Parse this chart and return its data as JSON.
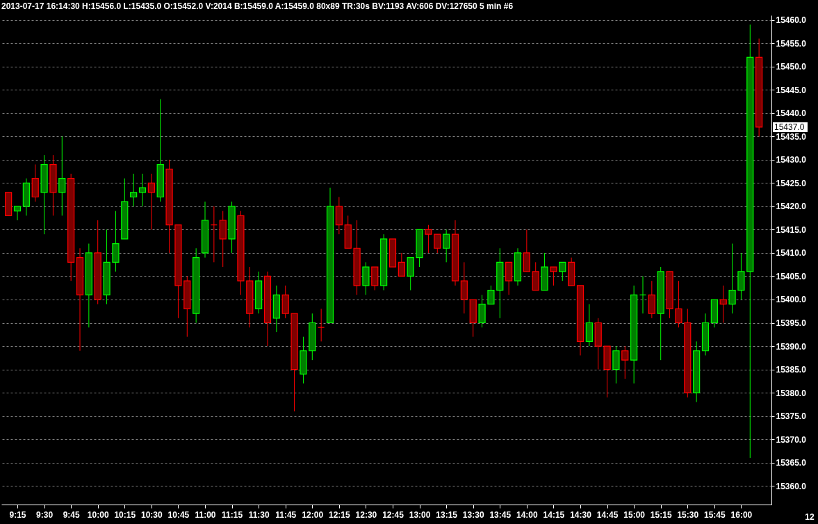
{
  "chart_data": {
    "type": "candlestick",
    "title": "2013-07-17 16:14:30 H:15456.0 L:15435.0 O:15452.0 V:2014 B:15459.0 A:15459.0 80x89 TR:30s BV:1193 AV:606 DV:127650 5 min  #6",
    "x": [
      "2013-07-17T09:10",
      "2013-07-17T09:15",
      "2013-07-17T09:20",
      "2013-07-17T09:25",
      "2013-07-17T09:30",
      "2013-07-17T09:35",
      "2013-07-17T09:40",
      "2013-07-17T09:45",
      "2013-07-17T09:50",
      "2013-07-17T09:55",
      "2013-07-17T10:00",
      "2013-07-17T10:05",
      "2013-07-17T10:10",
      "2013-07-17T10:15",
      "2013-07-17T10:20",
      "2013-07-17T10:25",
      "2013-07-17T10:30",
      "2013-07-17T10:35",
      "2013-07-17T10:40",
      "2013-07-17T10:45",
      "2013-07-17T10:50",
      "2013-07-17T10:55",
      "2013-07-17T11:00",
      "2013-07-17T11:05",
      "2013-07-17T11:10",
      "2013-07-17T11:15",
      "2013-07-17T11:20",
      "2013-07-17T11:25",
      "2013-07-17T11:30",
      "2013-07-17T11:35",
      "2013-07-17T11:40",
      "2013-07-17T11:45",
      "2013-07-17T11:50",
      "2013-07-17T11:55",
      "2013-07-17T12:00",
      "2013-07-17T12:05",
      "2013-07-17T12:10",
      "2013-07-17T12:15",
      "2013-07-17T12:20",
      "2013-07-17T12:25",
      "2013-07-17T12:30",
      "2013-07-17T12:35",
      "2013-07-17T12:40",
      "2013-07-17T12:45",
      "2013-07-17T12:50",
      "2013-07-17T12:55",
      "2013-07-17T13:00",
      "2013-07-17T13:05",
      "2013-07-17T13:10",
      "2013-07-17T13:15",
      "2013-07-17T13:20",
      "2013-07-17T13:25",
      "2013-07-17T13:30",
      "2013-07-17T13:35",
      "2013-07-17T13:40",
      "2013-07-17T13:45",
      "2013-07-17T13:50",
      "2013-07-17T13:55",
      "2013-07-17T14:00",
      "2013-07-17T14:05",
      "2013-07-17T14:10",
      "2013-07-17T14:15",
      "2013-07-17T14:20",
      "2013-07-17T14:25",
      "2013-07-17T14:30",
      "2013-07-17T14:35",
      "2013-07-17T14:40",
      "2013-07-17T14:45",
      "2013-07-17T14:50",
      "2013-07-17T14:55",
      "2013-07-17T15:00",
      "2013-07-17T15:05",
      "2013-07-17T15:10",
      "2013-07-17T15:15",
      "2013-07-17T15:20",
      "2013-07-17T15:25",
      "2013-07-17T15:30",
      "2013-07-17T15:35",
      "2013-07-17T15:40",
      "2013-07-17T15:45",
      "2013-07-17T15:50",
      "2013-07-17T15:55",
      "2013-07-17T16:00",
      "2013-07-17T16:05",
      "2013-07-17T16:10"
    ],
    "ohlc": [
      [
        15423,
        15423,
        15418,
        15418
      ],
      [
        15419,
        15420,
        15417,
        15420
      ],
      [
        15420,
        15426,
        15418,
        15425
      ],
      [
        15426,
        15429,
        15421,
        15422
      ],
      [
        15423,
        15431,
        15414,
        15429
      ],
      [
        15429,
        15431,
        15418,
        15423
      ],
      [
        15423,
        15435,
        15418,
        15426
      ],
      [
        15426,
        15427,
        15404,
        15408
      ],
      [
        15409,
        15411,
        15389,
        15401
      ],
      [
        15401,
        15412,
        15394,
        15410
      ],
      [
        15410,
        15417,
        15399,
        15400
      ],
      [
        15401,
        15415,
        15399,
        15408
      ],
      [
        15408,
        15419,
        15406,
        15412
      ],
      [
        15413,
        15426,
        15413,
        15421
      ],
      [
        15422,
        15427,
        15420,
        15423
      ],
      [
        15423,
        15427,
        15420,
        15424
      ],
      [
        15425,
        15427,
        15415,
        15423
      ],
      [
        15422,
        15443,
        15421,
        15429
      ],
      [
        15428,
        15430,
        15410,
        15416
      ],
      [
        15416,
        15416,
        15396,
        15403
      ],
      [
        15404,
        15405,
        15392,
        15398
      ],
      [
        15397,
        15411,
        15395,
        15409
      ],
      [
        15410,
        15421,
        15409,
        15417
      ],
      [
        15416,
        15420,
        15408,
        15416
      ],
      [
        15417,
        15419,
        15407,
        15413
      ],
      [
        15413,
        15421,
        15410,
        15420
      ],
      [
        15418,
        15419,
        15401,
        15404
      ],
      [
        15404,
        15407,
        15394,
        15397
      ],
      [
        15398,
        15406,
        15397,
        15404
      ],
      [
        15405,
        15406,
        15390,
        15395
      ],
      [
        15396,
        15403,
        15393,
        15401
      ],
      [
        15401,
        15403,
        15396,
        15397
      ],
      [
        15397,
        15397,
        15376,
        15385
      ],
      [
        15384,
        15392,
        15382,
        15389
      ],
      [
        15389,
        15397,
        15387,
        15395
      ],
      [
        15394,
        15398,
        15391,
        15394
      ],
      [
        15395,
        15424,
        15395,
        15420
      ],
      [
        15420,
        15422,
        15414,
        15416
      ],
      [
        15416,
        15418,
        15411,
        15411
      ],
      [
        15411,
        15417,
        15401,
        15403
      ],
      [
        15403,
        15408,
        15401,
        15407
      ],
      [
        15407,
        15407,
        15402,
        15403
      ],
      [
        15403,
        15414,
        15402,
        15413
      ],
      [
        15413,
        15413,
        15407,
        15407
      ],
      [
        15408,
        15410,
        15405,
        15405
      ],
      [
        15405,
        15409,
        15402,
        15409
      ],
      [
        15409,
        15415,
        15407,
        15415
      ],
      [
        15415,
        15416,
        15410,
        15414
      ],
      [
        15414,
        15414,
        15410,
        15411
      ],
      [
        15411,
        15415,
        15408,
        15414
      ],
      [
        15414,
        15417,
        15403,
        15404
      ],
      [
        15404,
        15408,
        15397,
        15400
      ],
      [
        15400,
        15400,
        15392,
        15395
      ],
      [
        15395,
        15401,
        15394,
        15399
      ],
      [
        15399,
        15403,
        15399,
        15402
      ],
      [
        15402,
        15411,
        15396,
        15408
      ],
      [
        15408,
        15408,
        15401,
        15404
      ],
      [
        15404,
        15411,
        15403,
        15410
      ],
      [
        15410,
        15415,
        15406,
        15406
      ],
      [
        15406,
        15408,
        15402,
        15402
      ],
      [
        15402,
        15410,
        15402,
        15407
      ],
      [
        15407,
        15407,
        15403,
        15406
      ],
      [
        15406,
        15408,
        15404,
        15408
      ],
      [
        15408,
        15409,
        15403,
        15403
      ],
      [
        15403,
        15403,
        15388,
        15391
      ],
      [
        15391,
        15399,
        15390,
        15395
      ],
      [
        15395,
        15396,
        15385,
        15390
      ],
      [
        15390,
        15390,
        15379,
        15385
      ],
      [
        15385,
        15390,
        15382,
        15389
      ],
      [
        15389,
        15390,
        15383,
        15387
      ],
      [
        15387,
        15403,
        15382,
        15401
      ],
      [
        15401,
        15405,
        15397,
        15401
      ],
      [
        15401,
        15404,
        15396,
        15397
      ],
      [
        15397,
        15407,
        15387,
        15406
      ],
      [
        15406,
        15406,
        15396,
        15398
      ],
      [
        15398,
        15404,
        15394,
        15395
      ],
      [
        15395,
        15398,
        15379,
        15380
      ],
      [
        15380,
        15391,
        15378,
        15389
      ],
      [
        15389,
        15397,
        15388,
        15395
      ],
      [
        15395,
        15400,
        15394,
        15400
      ],
      [
        15400,
        15403,
        15395,
        15399
      ],
      [
        15399,
        15412,
        15397,
        15402
      ],
      [
        15402,
        15410,
        15400,
        15406
      ],
      [
        15406,
        15459,
        15366,
        15452
      ],
      [
        15452,
        15456,
        15435,
        15437
      ]
    ],
    "colors": [
      "#ff0000",
      "#00ff00",
      "#00ff00",
      "#ff0000",
      "#00ff00",
      "#ff0000",
      "#00ff00",
      "#ff0000",
      "#ff0000",
      "#00ff00",
      "#ff0000",
      "#00ff00",
      "#00ff00",
      "#00ff00",
      "#00ff00",
      "#00ff00",
      "#ff0000",
      "#00ff00",
      "#ff0000",
      "#ff0000",
      "#ff0000",
      "#00ff00",
      "#00ff00",
      "#ff0000",
      "#ff0000",
      "#00ff00",
      "#ff0000",
      "#ff0000",
      "#00ff00",
      "#ff0000",
      "#00ff00",
      "#ff0000",
      "#ff0000",
      "#00ff00",
      "#00ff00",
      "#ff0000",
      "#00ff00",
      "#ff0000",
      "#ff0000",
      "#ff0000",
      "#00ff00",
      "#ff0000",
      "#00ff00",
      "#ff0000",
      "#ff0000",
      "#00ff00",
      "#00ff00",
      "#ff0000",
      "#ff0000",
      "#00ff00",
      "#ff0000",
      "#ff0000",
      "#ff0000",
      "#00ff00",
      "#00ff00",
      "#00ff00",
      "#ff0000",
      "#00ff00",
      "#ff0000",
      "#ff0000",
      "#00ff00",
      "#ff0000",
      "#00ff00",
      "#ff0000",
      "#ff0000",
      "#00ff00",
      "#ff0000",
      "#ff0000",
      "#00ff00",
      "#ff0000",
      "#00ff00",
      "#00ff00",
      "#ff0000",
      "#00ff00",
      "#ff0000",
      "#ff0000",
      "#ff0000",
      "#00ff00",
      "#00ff00",
      "#00ff00",
      "#ff0000",
      "#00ff00",
      "#00ff00",
      "#00ff00",
      "#ff0000"
    ],
    "xlim": [
      "2013-07-17T09:08",
      "2013-07-17T16:15"
    ],
    "xticks": [
      {
        "value": "2013-07-17T09:15",
        "label": "9:15"
      },
      {
        "value": "2013-07-17T09:30",
        "label": "9:30"
      },
      {
        "value": "2013-07-17T09:45",
        "label": "9:45"
      },
      {
        "value": "2013-07-17T10:00",
        "label": "10:00"
      },
      {
        "value": "2013-07-17T10:15",
        "label": "10:15"
      },
      {
        "value": "2013-07-17T10:30",
        "label": "10:30"
      },
      {
        "value": "2013-07-17T10:45",
        "label": "10:45"
      },
      {
        "value": "2013-07-17T11:00",
        "label": "11:00"
      },
      {
        "value": "2013-07-17T11:15",
        "label": "11:15"
      },
      {
        "value": "2013-07-17T11:30",
        "label": "11:30"
      },
      {
        "value": "2013-07-17T11:45",
        "label": "11:45"
      },
      {
        "value": "2013-07-17T12:00",
        "label": "12:00"
      },
      {
        "value": "2013-07-17T12:15",
        "label": "12:15"
      },
      {
        "value": "2013-07-17T12:30",
        "label": "12:30"
      },
      {
        "value": "2013-07-17T12:45",
        "label": "12:45"
      },
      {
        "value": "2013-07-17T13:00",
        "label": "13:00"
      },
      {
        "value": "2013-07-17T13:15",
        "label": "13:15"
      },
      {
        "value": "2013-07-17T13:30",
        "label": "13:30"
      },
      {
        "value": "2013-07-17T13:45",
        "label": "13:45"
      },
      {
        "value": "2013-07-17T14:00",
        "label": "14:00"
      },
      {
        "value": "2013-07-17T14:15",
        "label": "14:15"
      },
      {
        "value": "2013-07-17T14:30",
        "label": "14:30"
      },
      {
        "value": "2013-07-17T14:45",
        "label": "14:45"
      },
      {
        "value": "2013-07-17T15:00",
        "label": "15:00"
      },
      {
        "value": "2013-07-17T15:15",
        "label": "15:15"
      },
      {
        "value": "2013-07-17T15:30",
        "label": "15:30"
      },
      {
        "value": "2013-07-17T15:45",
        "label": "15:45"
      },
      {
        "value": "2013-07-17T16:00",
        "label": "16:00"
      }
    ],
    "ylim": [
      15356,
      15461
    ],
    "yticks": [
      {
        "value": 15360,
        "label": "15360.0"
      },
      {
        "value": 15365,
        "label": "15365.0"
      },
      {
        "value": 15370,
        "label": "15370.0"
      },
      {
        "value": 15375,
        "label": "15375.0"
      },
      {
        "value": 15380,
        "label": "15380.0"
      },
      {
        "value": 15385,
        "label": "15385.0"
      },
      {
        "value": 15390,
        "label": "15390.0"
      },
      {
        "value": 15395,
        "label": "15395.0"
      },
      {
        "value": 15400,
        "label": "15400.0"
      },
      {
        "value": 15405,
        "label": "15405.0"
      },
      {
        "value": 15410,
        "label": "15410.0"
      },
      {
        "value": 15415,
        "label": "15415.0"
      },
      {
        "value": 15420,
        "label": "15420.0"
      },
      {
        "value": 15425,
        "label": "15425.0"
      },
      {
        "value": 15430,
        "label": "15430.0"
      },
      {
        "value": 15435,
        "label": "15435.0"
      },
      {
        "value": 15440,
        "label": "15440.0"
      },
      {
        "value": 15445,
        "label": "15445.0"
      },
      {
        "value": 15450,
        "label": "15450.0"
      },
      {
        "value": 15455,
        "label": "15455.0"
      },
      {
        "value": 15460,
        "label": "15460.0"
      }
    ],
    "grid": "y",
    "annotations": [
      "15437.0",
      "12"
    ]
  }
}
